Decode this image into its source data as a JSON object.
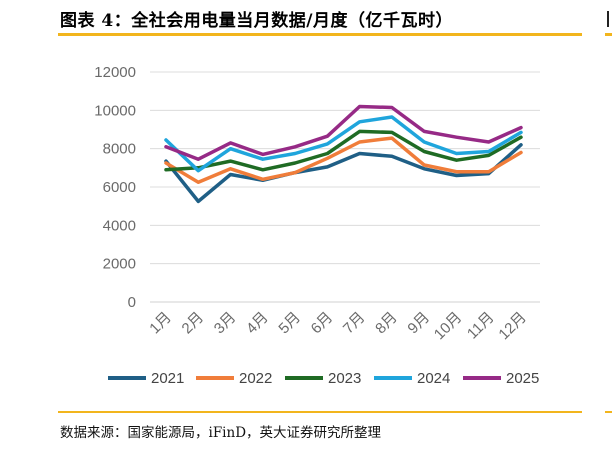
{
  "figure": {
    "title": "图表 4：全社会用电量当月数据/月度（亿千瓦时）",
    "source": "数据来源：国家能源局，iFinD，英大证券研究所整理"
  },
  "chart_data": {
    "type": "line",
    "title": "",
    "xlabel": "",
    "ylabel": "",
    "categories": [
      "1月",
      "2月",
      "3月",
      "4月",
      "5月",
      "6月",
      "7月",
      "8月",
      "9月",
      "10月",
      "11月",
      "12月"
    ],
    "ylim": [
      0,
      12000
    ],
    "yticks": [
      0,
      2000,
      4000,
      6000,
      8000,
      10000,
      12000
    ],
    "grid": true,
    "legend": "bottom",
    "series": [
      {
        "name": "2021",
        "color": "#1f5f86",
        "values": [
          7350,
          5250,
          6650,
          6350,
          6750,
          7050,
          7750,
          7600,
          6950,
          6600,
          6700,
          8200
        ]
      },
      {
        "name": "2022",
        "color": "#f07d3a",
        "values": [
          7250,
          6250,
          6950,
          6400,
          6750,
          7500,
          8350,
          8550,
          7150,
          6800,
          6800,
          7800
        ]
      },
      {
        "name": "2023",
        "color": "#1f6b24",
        "values": [
          6900,
          7000,
          7350,
          6900,
          7250,
          7750,
          8900,
          8850,
          7850,
          7400,
          7650,
          8600
        ]
      },
      {
        "name": "2024",
        "color": "#1fa5dc",
        "values": [
          8450,
          6850,
          8000,
          7450,
          7750,
          8250,
          9400,
          9650,
          8350,
          7750,
          7850,
          8850
        ]
      },
      {
        "name": "2025",
        "color": "#962a86",
        "values": [
          8100,
          7450,
          8300,
          7700,
          8100,
          8650,
          10200,
          10150,
          8900,
          8600,
          8350,
          9100
        ]
      }
    ]
  }
}
